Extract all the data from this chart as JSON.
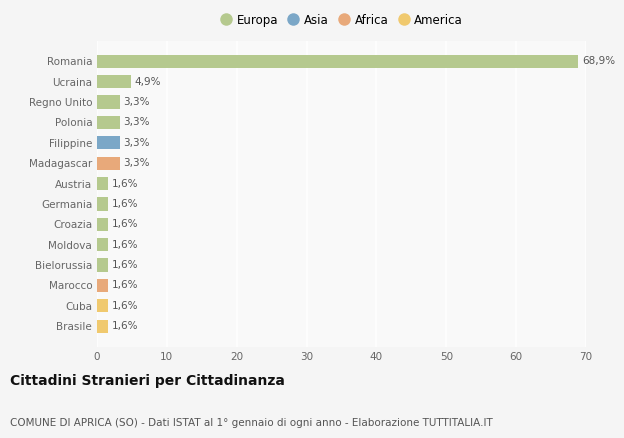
{
  "countries": [
    "Romania",
    "Ucraina",
    "Regno Unito",
    "Polonia",
    "Filippine",
    "Madagascar",
    "Austria",
    "Germania",
    "Croazia",
    "Moldova",
    "Bielorussia",
    "Marocco",
    "Cuba",
    "Brasile"
  ],
  "values": [
    68.9,
    4.9,
    3.3,
    3.3,
    3.3,
    3.3,
    1.6,
    1.6,
    1.6,
    1.6,
    1.6,
    1.6,
    1.6,
    1.6
  ],
  "labels": [
    "68,9%",
    "4,9%",
    "3,3%",
    "3,3%",
    "3,3%",
    "3,3%",
    "1,6%",
    "1,6%",
    "1,6%",
    "1,6%",
    "1,6%",
    "1,6%",
    "1,6%",
    "1,6%"
  ],
  "colors": [
    "#b5c98e",
    "#b5c98e",
    "#b5c98e",
    "#b5c98e",
    "#7ba7c7",
    "#e8a97a",
    "#b5c98e",
    "#b5c98e",
    "#b5c98e",
    "#b5c98e",
    "#b5c98e",
    "#e8a97a",
    "#f0c96e",
    "#f0c96e"
  ],
  "legend_labels": [
    "Europa",
    "Asia",
    "Africa",
    "America"
  ],
  "legend_colors": [
    "#b5c98e",
    "#7ba7c7",
    "#e8a97a",
    "#f0c96e"
  ],
  "title": "Cittadini Stranieri per Cittadinanza",
  "subtitle": "COMUNE DI APRICA (SO) - Dati ISTAT al 1° gennaio di ogni anno - Elaborazione TUTTITALIA.IT",
  "xlim": [
    0,
    70
  ],
  "xticks": [
    0,
    10,
    20,
    30,
    40,
    50,
    60,
    70
  ],
  "background_color": "#f5f5f5",
  "plot_bg_color": "#f9f9f9",
  "grid_color": "#ffffff",
  "label_fontsize": 7.5,
  "tick_fontsize": 7.5,
  "title_fontsize": 10,
  "subtitle_fontsize": 7.5
}
